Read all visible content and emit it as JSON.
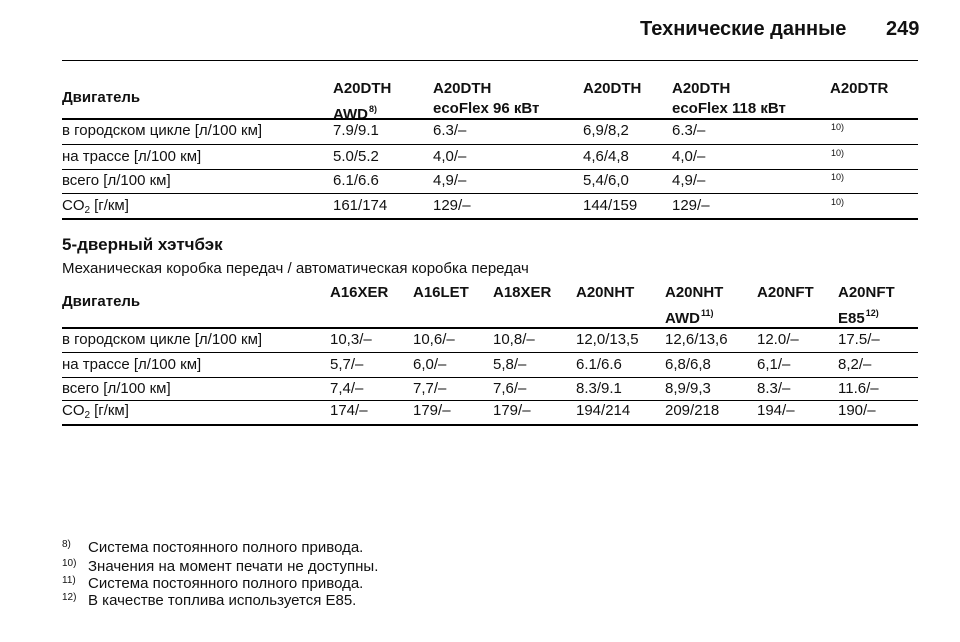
{
  "header": {
    "title": "Технические данные",
    "page": "249"
  },
  "table1": {
    "columns": [
      {
        "lines": [
          "Двигатель"
        ]
      },
      {
        "lines": [
          "A20DTH",
          "AWD"
        ],
        "note": "8)"
      },
      {
        "lines": [
          "A20DTH",
          "ecoFlex 96 кВт"
        ]
      },
      {
        "lines": [
          "A20DTH"
        ]
      },
      {
        "lines": [
          "A20DTH",
          "ecoFlex 118 кВт"
        ]
      },
      {
        "lines": [
          "A20DTR"
        ]
      }
    ],
    "rows": [
      {
        "label": {
          "text": "в городском цикле [л/100 км]"
        },
        "cells": [
          "7.9/9.1",
          "6.3/–",
          "6,9/8,2",
          "6.3/–",
          {
            "note": "10)"
          }
        ]
      },
      {
        "label": {
          "text": "на трассе [л/100 км]"
        },
        "cells": [
          "5.0/5.2",
          "4,0/–",
          "4,6/4,8",
          "4,0/–",
          {
            "note": "10)"
          }
        ]
      },
      {
        "label": {
          "text": "всего [л/100 км]"
        },
        "cells": [
          "6.1/6.6",
          "4,9/–",
          "5,4/6,0",
          "4,9/–",
          {
            "note": "10)"
          }
        ]
      },
      {
        "label": {
          "text": "CO",
          "sub": "2",
          "rest": "[г/км]"
        },
        "cells": [
          "161/174",
          "129/–",
          "144/159",
          "129/–",
          {
            "note": "10)"
          }
        ]
      }
    ]
  },
  "section": {
    "title": "5-дверный хэтчбэк",
    "subtitle": "Механическая коробка передач / автоматическая коробка передач"
  },
  "table2": {
    "columns": [
      {
        "lines": [
          "Двигатель"
        ]
      },
      {
        "lines": [
          "A16XER"
        ]
      },
      {
        "lines": [
          "A16LET"
        ]
      },
      {
        "lines": [
          "A18XER"
        ]
      },
      {
        "lines": [
          "A20NHT"
        ]
      },
      {
        "lines": [
          "A20NHT",
          "AWD"
        ],
        "note": "11)"
      },
      {
        "lines": [
          "A20NFT"
        ]
      },
      {
        "lines": [
          "A20NFT",
          "E85"
        ],
        "note": "12)"
      }
    ],
    "rows": [
      {
        "label": {
          "text": "в городском цикле [л/100 км]"
        },
        "cells": [
          "10,3/–",
          "10,6/–",
          "10,8/–",
          "12,0/13,5",
          "12,6/13,6",
          "12.0/–",
          "17.5/–"
        ]
      },
      {
        "label": {
          "text": "на трассе [л/100 км]"
        },
        "cells": [
          "5,7/–",
          "6,0/–",
          "5,8/–",
          "6.1/6.6",
          "6,8/6,8",
          "6,1/–",
          "8,2/–"
        ]
      },
      {
        "label": {
          "text": "всего [л/100 км]"
        },
        "cells": [
          "7,4/–",
          "7,7/–",
          "7,6/–",
          "8.3/9.1",
          "8,9/9,3",
          "8.3/–",
          "11.6/–"
        ]
      },
      {
        "label": {
          "text": "CO",
          "sub": "2",
          "rest": "[г/км]"
        },
        "cells": [
          "174/–",
          "179/–",
          "179/–",
          "194/214",
          "209/218",
          "194/–",
          "190/–"
        ]
      }
    ]
  },
  "footnotes": [
    {
      "mark": "8)",
      "text": "Система постоянного полного привода."
    },
    {
      "mark": "10)",
      "text": "Значения на момент печати не доступны."
    },
    {
      "mark": "11)",
      "text": "Система постоянного полного привода."
    },
    {
      "mark": "12)",
      "text": "В качестве топлива используется E85."
    }
  ]
}
